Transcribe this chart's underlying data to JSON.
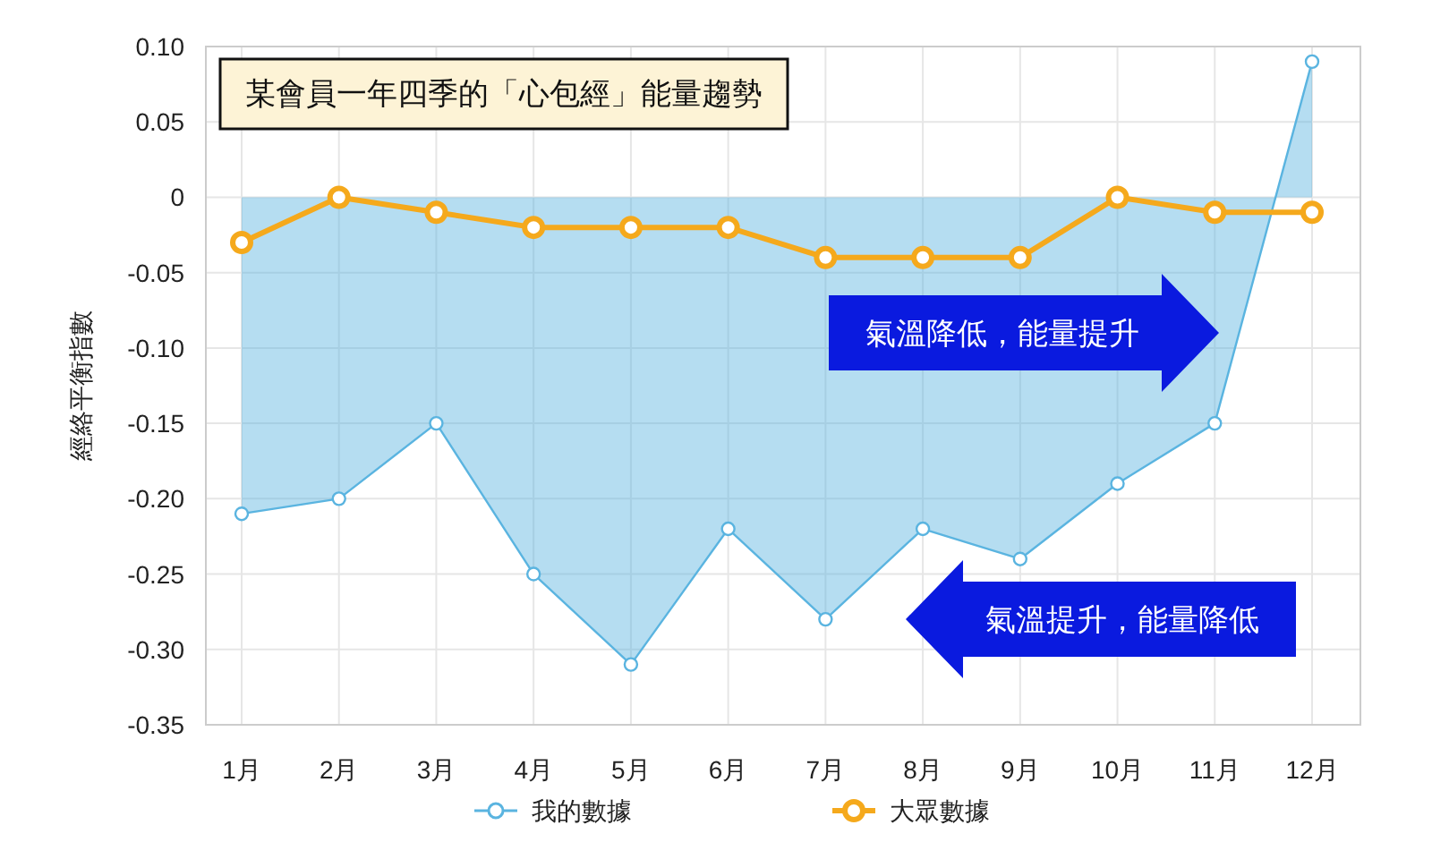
{
  "chart_data": {
    "type": "line",
    "title": "某會員一年四季的「心包經」能量趨勢",
    "ylabel": "經絡平衡指數",
    "categories": [
      "1月",
      "2月",
      "3月",
      "4月",
      "5月",
      "6月",
      "7月",
      "8月",
      "9月",
      "10月",
      "11月",
      "12月"
    ],
    "series": [
      {
        "name": "我的數據",
        "type": "area",
        "color": "#5ab4e0",
        "values": [
          -0.21,
          -0.2,
          -0.15,
          -0.25,
          -0.31,
          -0.22,
          -0.28,
          -0.22,
          -0.24,
          -0.19,
          -0.15,
          0.09
        ]
      },
      {
        "name": "大眾數據",
        "color": "#f5a91c",
        "values": [
          -0.03,
          0,
          -0.01,
          -0.02,
          -0.02,
          -0.02,
          -0.04,
          -0.04,
          -0.04,
          0,
          -0.01,
          -0.01
        ]
      }
    ],
    "ylim": [
      -0.35,
      0.1
    ],
    "yticks": [
      {
        "value": 0.1,
        "label": "0.10"
      },
      0.05,
      0,
      -0.05,
      {
        "value": -0.1,
        "label": "-0.10"
      },
      -0.15,
      {
        "value": -0.2,
        "label": "-0.20"
      },
      -0.25,
      {
        "value": -0.3,
        "label": "-0.30"
      },
      -0.35
    ],
    "annotations": [
      "氣溫降低，能量提升",
      "氣溫提升，能量降低"
    ],
    "grid": true,
    "legend": "bottom",
    "marker": "circle",
    "line_style": "solid"
  }
}
